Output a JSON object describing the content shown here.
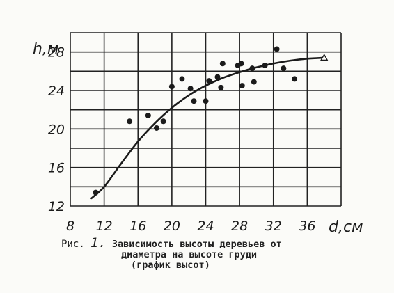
{
  "chart_data": {
    "type": "scatter",
    "title": "",
    "xlabel": "d,см",
    "ylabel": "h,м",
    "xlim": [
      8,
      40
    ],
    "ylim": [
      12,
      30
    ],
    "x_ticks": [
      8,
      12,
      16,
      20,
      24,
      28,
      32,
      36
    ],
    "y_ticks": [
      12,
      16,
      20,
      24,
      28
    ],
    "x_grid": [
      8,
      12,
      16,
      20,
      24,
      28,
      32,
      36,
      40
    ],
    "y_grid": [
      12,
      14,
      16,
      18,
      20,
      22,
      24,
      26,
      28,
      30
    ],
    "grid": true,
    "points": [
      {
        "x": 15,
        "y": 20.8
      },
      {
        "x": 17.2,
        "y": 21.4
      },
      {
        "x": 18.2,
        "y": 20.1
      },
      {
        "x": 19,
        "y": 20.8
      },
      {
        "x": 20,
        "y": 24.4
      },
      {
        "x": 21.2,
        "y": 25.2
      },
      {
        "x": 22.2,
        "y": 24.2
      },
      {
        "x": 22.6,
        "y": 22.9
      },
      {
        "x": 24,
        "y": 22.9
      },
      {
        "x": 24.4,
        "y": 25
      },
      {
        "x": 25.4,
        "y": 25.4
      },
      {
        "x": 25.8,
        "y": 24.3
      },
      {
        "x": 26,
        "y": 26.8
      },
      {
        "x": 27.8,
        "y": 26.6
      },
      {
        "x": 28.2,
        "y": 26.8
      },
      {
        "x": 28.3,
        "y": 24.5
      },
      {
        "x": 29.5,
        "y": 26.3
      },
      {
        "x": 29.7,
        "y": 24.9
      },
      {
        "x": 31,
        "y": 26.6
      },
      {
        "x": 32.4,
        "y": 28.3
      },
      {
        "x": 33.2,
        "y": 26.3
      },
      {
        "x": 34.5,
        "y": 25.2
      },
      {
        "x": 11,
        "y": 13.4
      }
    ],
    "curve": [
      {
        "x": 10.5,
        "y": 12.8
      },
      {
        "x": 12,
        "y": 14
      },
      {
        "x": 14,
        "y": 16.4
      },
      {
        "x": 16,
        "y": 18.7
      },
      {
        "x": 18,
        "y": 20.6
      },
      {
        "x": 20,
        "y": 22.2
      },
      {
        "x": 22,
        "y": 23.5
      },
      {
        "x": 24,
        "y": 24.5
      },
      {
        "x": 26,
        "y": 25.3
      },
      {
        "x": 28,
        "y": 25.9
      },
      {
        "x": 30,
        "y": 26.4
      },
      {
        "x": 32,
        "y": 26.8
      },
      {
        "x": 34,
        "y": 27.1
      },
      {
        "x": 36,
        "y": 27.3
      },
      {
        "x": 38,
        "y": 27.4
      }
    ],
    "curve_end_marker": {
      "x": 38,
      "y": 27.4
    },
    "colors": {
      "ink": "#1b1b1b",
      "grid": "#222222",
      "paper": "#fbfbf8"
    }
  },
  "caption": {
    "fig_label": "Рис.",
    "fig_number": "1.",
    "line1": "Зависимость высоты деревьев от",
    "line2": "диаметра на высоте груди",
    "line3": "(график высот)"
  }
}
